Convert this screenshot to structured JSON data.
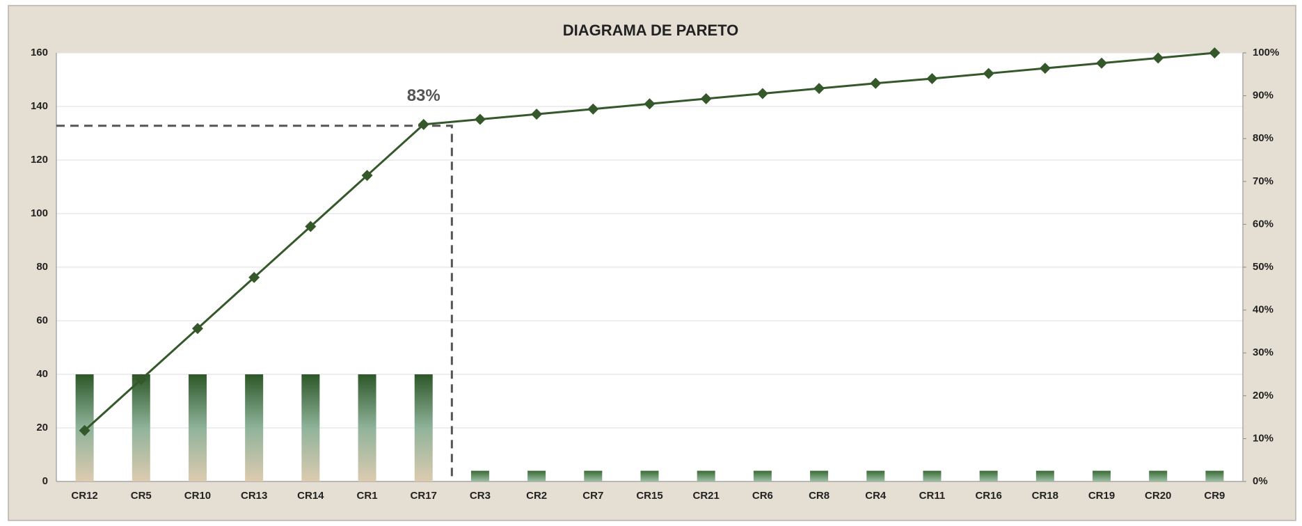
{
  "chart_data": {
    "type": "pareto",
    "title": "DIAGRAMA DE PARETO",
    "categories": [
      "CR12",
      "CR5",
      "CR10",
      "CR13",
      "CR14",
      "CR1",
      "CR17",
      "CR3",
      "CR2",
      "CR7",
      "CR15",
      "CR21",
      "CR6",
      "CR8",
      "CR4",
      "CR11",
      "CR16",
      "CR18",
      "CR19",
      "CR20",
      "CR9"
    ],
    "series": [
      {
        "type": "bar",
        "color": "#2f5a2b",
        "values": [
          40,
          40,
          40,
          40,
          40,
          40,
          40,
          4,
          4,
          4,
          4,
          4,
          4,
          4,
          4,
          4,
          4,
          4,
          4,
          4,
          4
        ]
      },
      {
        "type": "line",
        "axis": "y2",
        "color": "#35582b",
        "values": [
          11.9,
          23.8,
          35.7,
          47.6,
          59.5,
          71.4,
          83.3,
          84.5,
          85.7,
          86.9,
          88.1,
          89.3,
          90.5,
          91.7,
          92.9,
          94.0,
          95.2,
          96.4,
          97.6,
          98.8,
          100
        ]
      }
    ],
    "annotation": {
      "text": "83%",
      "value": 83
    },
    "ylim": [
      0,
      160
    ],
    "yticks": [
      0,
      20,
      40,
      60,
      80,
      100,
      120,
      140,
      160
    ],
    "y2lim": [
      0,
      100
    ],
    "y2ticks": [
      {
        "value": 0,
        "label": "0%"
      },
      {
        "value": 10,
        "label": "10%"
      },
      {
        "value": 20,
        "label": "20%"
      },
      {
        "value": 30,
        "label": "30%"
      },
      {
        "value": 40,
        "label": "40%"
      },
      {
        "value": 50,
        "label": "50%"
      },
      {
        "value": 60,
        "label": "60%"
      },
      {
        "value": 70,
        "label": "70%"
      },
      {
        "value": 80,
        "label": "80%"
      },
      {
        "value": 90,
        "label": "90%"
      },
      {
        "value": 100,
        "label": "100%"
      }
    ],
    "grid": true
  }
}
